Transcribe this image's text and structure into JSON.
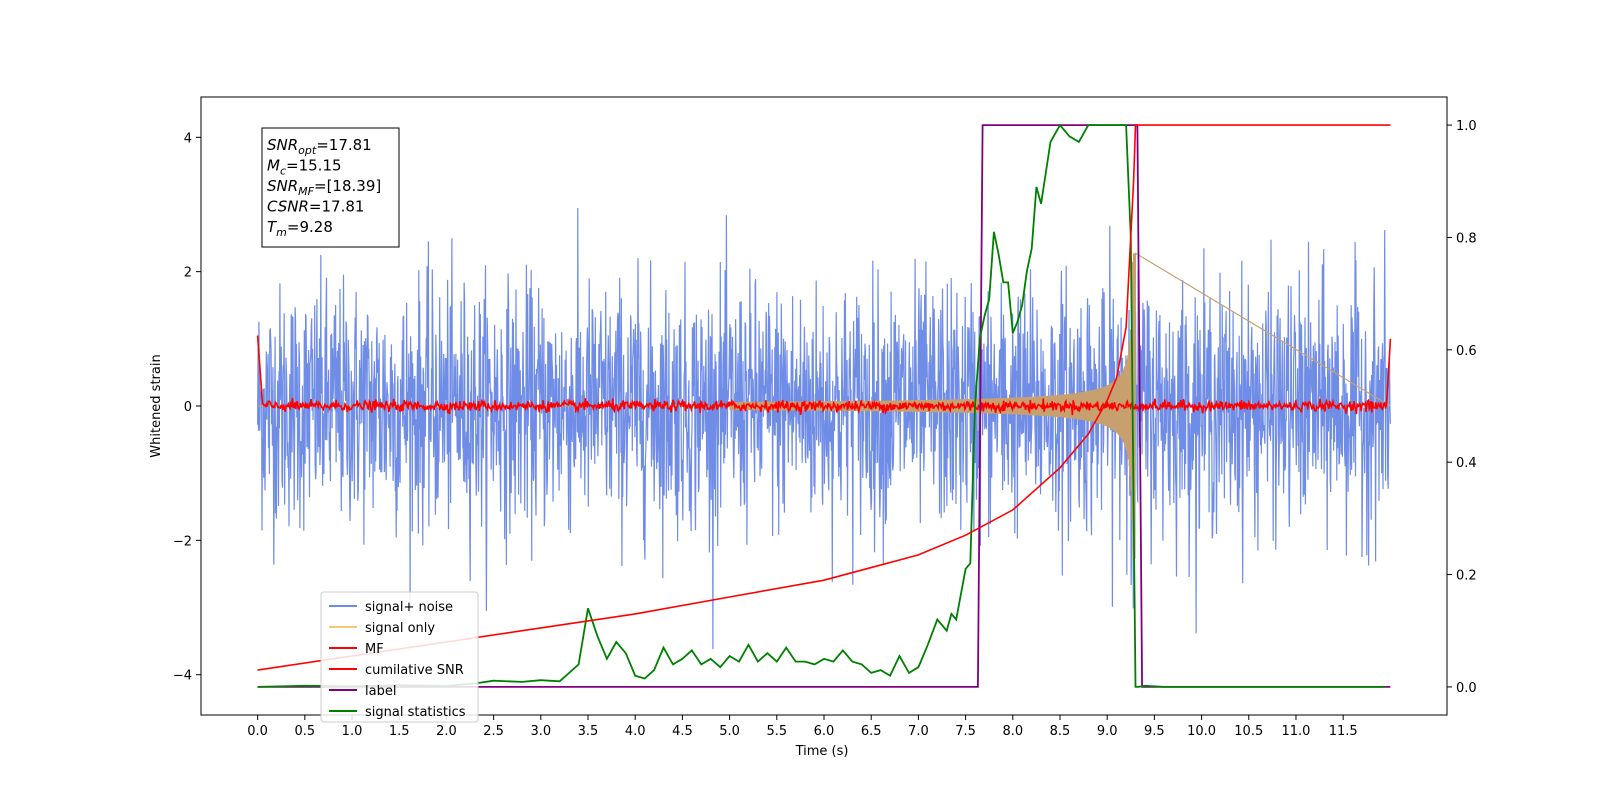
{
  "chart_data": {
    "type": "line",
    "title": "",
    "xlabel": "Time (s)",
    "ylabel": "Whitened strain",
    "xlim": [
      -0.6,
      12.6
    ],
    "ylim": [
      -4.6,
      4.6
    ],
    "ylim_right": [
      -0.05,
      1.05
    ],
    "grid": false,
    "legend_position": "lower-left",
    "x_ticks": [
      "0.0",
      "0.5",
      "1.0",
      "1.5",
      "2.0",
      "2.5",
      "3.0",
      "3.5",
      "4.0",
      "4.5",
      "5.0",
      "5.5",
      "6.0",
      "6.5",
      "7.0",
      "7.5",
      "8.0",
      "8.5",
      "9.0",
      "9.5",
      "10.0",
      "10.5",
      "11.0",
      "11.5"
    ],
    "y_ticks_left": [
      "4",
      "2",
      "0",
      "−2",
      "−4"
    ],
    "y_ticks_right": [
      "1.0",
      "0.8",
      "0.6",
      "0.4",
      "0.2",
      "0.0"
    ],
    "annotation": {
      "lines": [
        {
          "base": "SNR",
          "sub": "opt",
          "value": "=17.81"
        },
        {
          "base": "M",
          "sub": "c",
          "value": "=15.15"
        },
        {
          "base": "SNR",
          "sub": "MF",
          "value": "=[18.39]"
        },
        {
          "base": "CSNR",
          "sub": "",
          "value": "=17.81"
        },
        {
          "base": "T",
          "sub": "m",
          "value": "=9.28"
        }
      ]
    },
    "series": [
      {
        "name": "signal+ noise",
        "color": "#6f8de6",
        "axis": "left",
        "description_values": {
          "noise_amplitude": 1.0,
          "t_start": 0.0,
          "t_end": 12.0
        }
      },
      {
        "name": "signal only",
        "color": "#f5c77a",
        "axis": "left",
        "description_values": {
          "chirp_start": 7.5,
          "merger": 9.28,
          "peak_amplitude": 2.8
        }
      },
      {
        "name": "MF",
        "color": "#ff0000",
        "axis": "left",
        "description_values": {
          "baseline": 0.0,
          "edge_value": 1.0
        }
      },
      {
        "name": "cumilative SNR",
        "color": "#ff0000",
        "axis": "right",
        "x": [
          0.0,
          1.0,
          2.0,
          3.0,
          4.0,
          5.0,
          6.0,
          7.0,
          7.5,
          8.0,
          8.5,
          8.8,
          9.0,
          9.1,
          9.2,
          9.28,
          9.3,
          12.0
        ],
        "y": [
          0.03,
          0.055,
          0.08,
          0.105,
          0.13,
          0.16,
          0.19,
          0.235,
          0.27,
          0.315,
          0.39,
          0.45,
          0.51,
          0.55,
          0.64,
          0.9,
          1.0,
          1.0
        ]
      },
      {
        "name": "label",
        "color": "#800080",
        "axis": "right",
        "x": [
          0.0,
          7.63,
          7.68,
          9.32,
          9.37,
          12.0
        ],
        "y": [
          0.0,
          0.0,
          1.0,
          1.0,
          0.0,
          0.0
        ]
      },
      {
        "name": "signal statistics",
        "color": "#008000",
        "axis": "right",
        "x": [
          0.0,
          0.5,
          1.0,
          1.5,
          2.0,
          2.3,
          2.5,
          2.8,
          3.0,
          3.2,
          3.4,
          3.5,
          3.6,
          3.7,
          3.8,
          3.9,
          4.0,
          4.1,
          4.2,
          4.3,
          4.4,
          4.5,
          4.6,
          4.7,
          4.8,
          4.9,
          5.0,
          5.1,
          5.2,
          5.3,
          5.4,
          5.5,
          5.6,
          5.7,
          5.8,
          5.9,
          6.0,
          6.1,
          6.2,
          6.3,
          6.4,
          6.5,
          6.6,
          6.7,
          6.8,
          6.9,
          7.0,
          7.1,
          7.2,
          7.3,
          7.35,
          7.4,
          7.5,
          7.55,
          7.6,
          7.65,
          7.7,
          7.75,
          7.8,
          7.85,
          7.9,
          7.95,
          8.0,
          8.05,
          8.1,
          8.15,
          8.2,
          8.25,
          8.3,
          8.4,
          8.5,
          8.6,
          8.7,
          8.8,
          9.0,
          9.1,
          9.2,
          9.25,
          9.3,
          9.33,
          9.4,
          9.6,
          10.0,
          11.0,
          11.95
        ],
        "y": [
          0.0,
          0.002,
          0.001,
          0.003,
          0.002,
          0.006,
          0.011,
          0.009,
          0.012,
          0.01,
          0.04,
          0.14,
          0.09,
          0.05,
          0.08,
          0.06,
          0.02,
          0.015,
          0.03,
          0.07,
          0.04,
          0.05,
          0.065,
          0.04,
          0.05,
          0.035,
          0.055,
          0.045,
          0.075,
          0.045,
          0.06,
          0.045,
          0.07,
          0.045,
          0.045,
          0.04,
          0.05,
          0.045,
          0.065,
          0.045,
          0.04,
          0.025,
          0.03,
          0.02,
          0.055,
          0.025,
          0.035,
          0.075,
          0.12,
          0.1,
          0.13,
          0.12,
          0.21,
          0.22,
          0.5,
          0.62,
          0.66,
          0.69,
          0.81,
          0.77,
          0.72,
          0.72,
          0.63,
          0.65,
          0.68,
          0.74,
          0.78,
          0.89,
          0.86,
          0.97,
          1.0,
          0.98,
          0.97,
          1.0,
          1.0,
          1.0,
          1.0,
          0.8,
          0.0,
          0.0,
          0.002,
          0.0,
          0.0,
          0.0,
          0.0
        ]
      }
    ]
  }
}
